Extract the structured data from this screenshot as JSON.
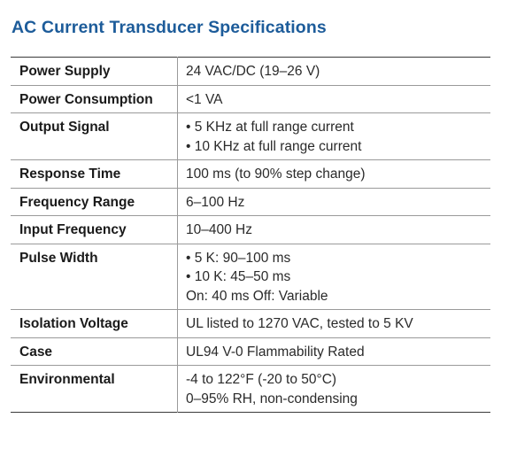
{
  "title": "AC Current Transducer Specifications",
  "rows": [
    {
      "label": "Power Supply",
      "lines": [
        "24 VAC/DC (19–26 V)"
      ]
    },
    {
      "label": "Power Consumption",
      "lines": [
        "<1 VA"
      ]
    },
    {
      "label": "Output Signal",
      "lines": [
        "• 5 KHz at full range current",
        "• 10 KHz at full range current"
      ]
    },
    {
      "label": "Response Time",
      "lines": [
        "100 ms (to 90% step change)"
      ]
    },
    {
      "label": "Frequency Range",
      "lines": [
        "6–100 Hz"
      ]
    },
    {
      "label": "Input Frequency",
      "lines": [
        "10–400 Hz"
      ]
    },
    {
      "label": "Pulse Width",
      "lines": [
        "• 5 K: 90–100 ms",
        "• 10 K: 45–50 ms",
        "On: 40 ms Off: Variable"
      ]
    },
    {
      "label": "Isolation Voltage",
      "lines": [
        "UL listed to 1270 VAC, tested to 5 KV"
      ]
    },
    {
      "label": "Case",
      "lines": [
        "UL94 V-0 Flammability Rated"
      ]
    },
    {
      "label": "Environmental",
      "lines": [
        "-4 to 122°F (-20 to 50°C)",
        "0–95% RH, non-condensing"
      ]
    }
  ]
}
